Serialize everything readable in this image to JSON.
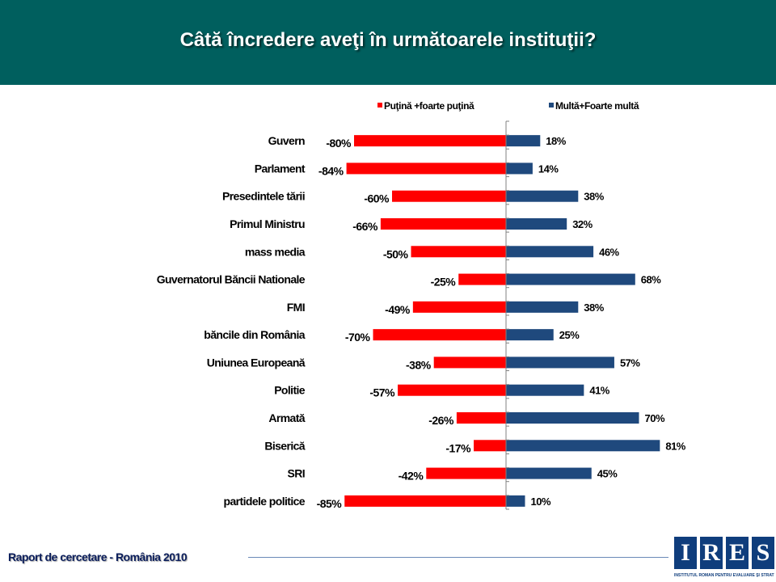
{
  "header": {
    "title": "Câtă încredere aveţi în următoarele instituţii?"
  },
  "chart_data": {
    "type": "bar",
    "orientation": "horizontal",
    "title": "Câtă încredere aveţi în următoarele instituţii?",
    "categories": [
      "Guvern",
      "Parlament",
      "Presedintele tării",
      "Primul Ministru",
      "mass media",
      "Guvernatorul Băncii Nationale",
      "FMI",
      "băncile din România",
      "Uniunea Europeană",
      "Politie",
      "Armată",
      "Biserică",
      "SRI",
      "partidele politice"
    ],
    "series": [
      {
        "name": "Puţină +foarte puţină",
        "color": "#ff0000",
        "values": [
          -80,
          -84,
          -60,
          -66,
          -50,
          -25,
          -49,
          -70,
          -38,
          -57,
          -26,
          -17,
          -42,
          -85
        ]
      },
      {
        "name": "Multă+Foarte multă",
        "color": "#1f497d",
        "values": [
          18,
          14,
          38,
          32,
          46,
          68,
          38,
          25,
          57,
          41,
          70,
          81,
          45,
          10
        ]
      }
    ],
    "value_suffix": "%",
    "xlim": [
      -85,
      85
    ],
    "legend": "top-right",
    "grid": false
  },
  "footer": {
    "report_text": "Raport de cercetare -  România 2010",
    "logo_letters": [
      "I",
      "R",
      "E",
      "S"
    ],
    "logo_subtitle": "INSTITUTUL ROMÂN PENTRU EVALUARE ŞI STRATEGIE"
  }
}
